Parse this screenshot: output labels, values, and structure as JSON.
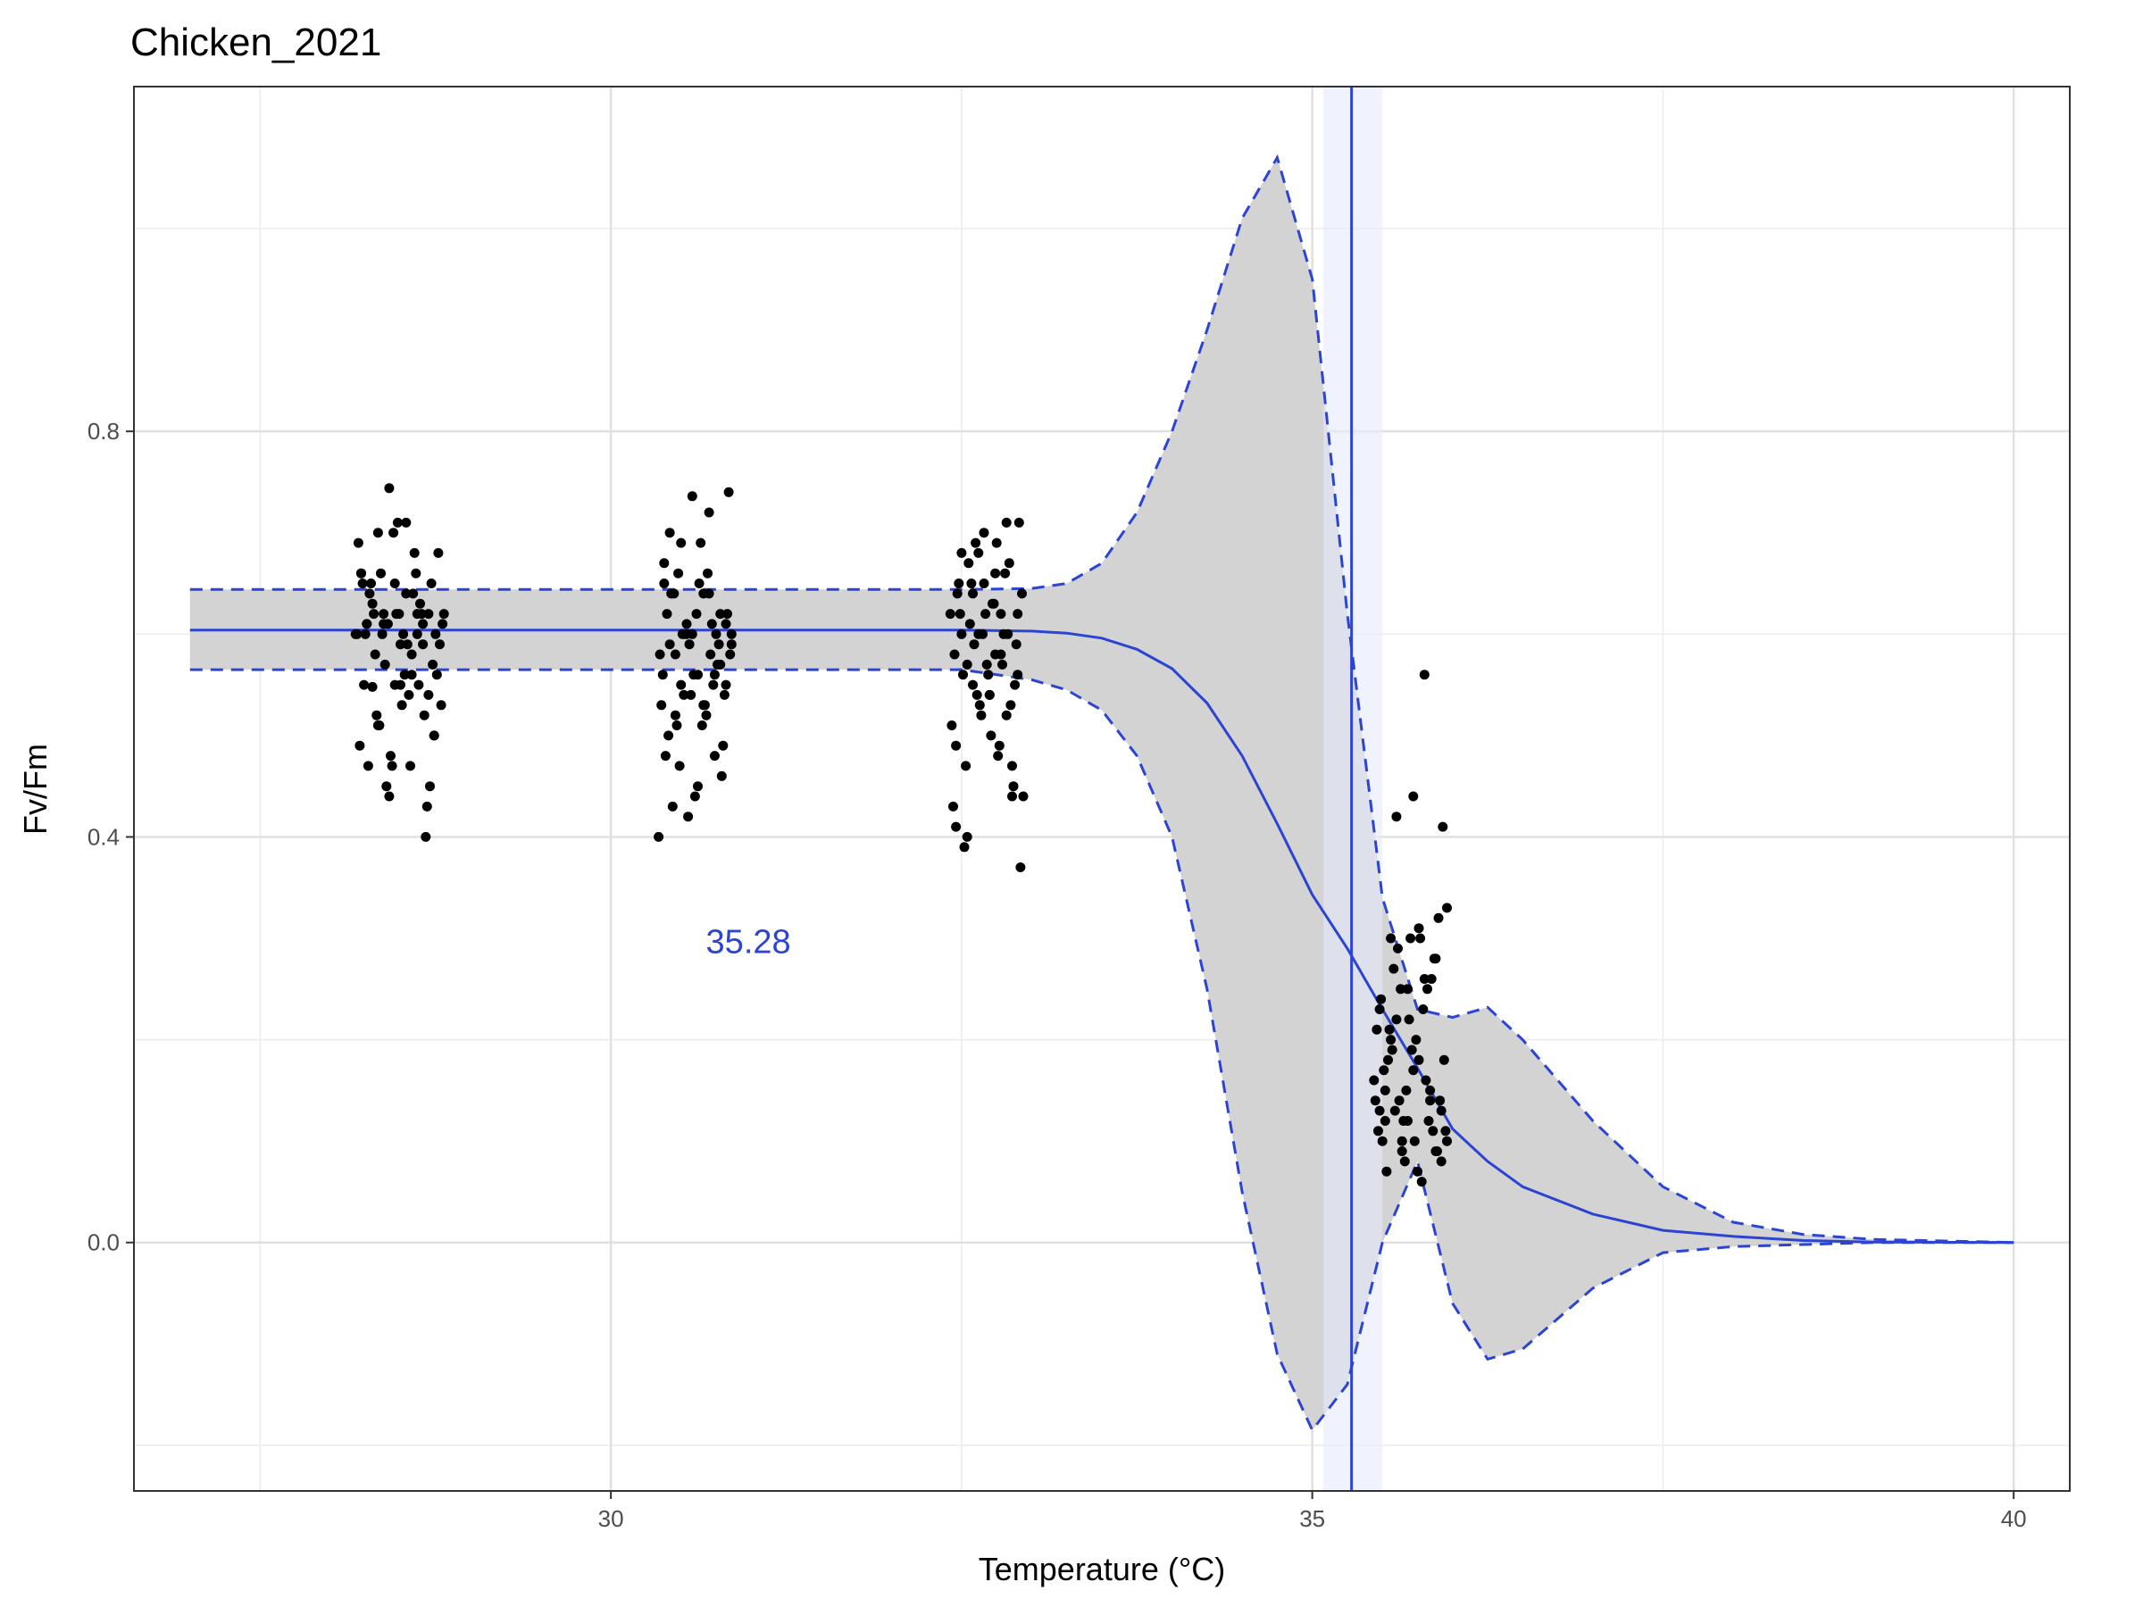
{
  "chart_data": {
    "type": "scatter",
    "title": "Chicken_2021",
    "xlabel": "Temperature (°C)",
    "ylabel": "Fv/Fm",
    "xlim": [
      26.6,
      40.4
    ],
    "ylim": [
      -0.245,
      1.14
    ],
    "x_ticks": [
      30,
      35,
      40
    ],
    "x_tick_labels": [
      "30",
      "35",
      "40"
    ],
    "x_minor_ticks": [
      27.5,
      32.5,
      37.5
    ],
    "y_ticks": [
      0.0,
      0.4,
      0.8
    ],
    "y_tick_labels": [
      "0.0",
      "0.4",
      "0.8"
    ],
    "y_minor_ticks": [
      -0.2,
      0.2,
      0.6,
      1.0
    ],
    "grid": true,
    "legend": "none",
    "colors": {
      "fit": "#2c44d2",
      "ribbon": "#d3d3d3",
      "points": "#000000",
      "ed50_band": "#e6eafc"
    },
    "ed50": {
      "value": 35.28,
      "ci": [
        35.08,
        35.5
      ],
      "label": "35.28",
      "label_position": [
        30.98,
        0.297
      ]
    },
    "fit_curve": {
      "x": [
        27,
        28,
        29,
        30,
        31,
        32,
        32.5,
        33,
        33.25,
        33.5,
        33.75,
        34,
        34.25,
        34.5,
        34.75,
        35,
        35.25,
        35.5,
        35.75,
        36,
        36.25,
        36.5,
        37,
        37.5,
        38,
        38.5,
        39,
        40
      ],
      "y": [
        0.604,
        0.604,
        0.604,
        0.604,
        0.604,
        0.604,
        0.604,
        0.603,
        0.601,
        0.596,
        0.585,
        0.566,
        0.532,
        0.48,
        0.413,
        0.343,
        0.29,
        0.23,
        0.172,
        0.112,
        0.08,
        0.055,
        0.028,
        0.012,
        0.006,
        0.002,
        0.0005,
        0.0
      ]
    },
    "ci_upper": {
      "x": [
        27,
        28,
        29,
        30,
        31,
        32,
        32.5,
        33,
        33.25,
        33.5,
        33.75,
        34,
        34.25,
        34.5,
        34.75,
        35,
        35.25,
        35.5,
        35.75,
        36,
        36.25,
        36.5,
        37,
        37.5,
        38,
        38.5,
        39,
        40
      ],
      "y": [
        0.644,
        0.644,
        0.644,
        0.644,
        0.644,
        0.644,
        0.644,
        0.645,
        0.65,
        0.67,
        0.72,
        0.8,
        0.9,
        1.01,
        1.07,
        0.95,
        0.62,
        0.34,
        0.23,
        0.222,
        0.232,
        0.2,
        0.12,
        0.055,
        0.02,
        0.008,
        0.003,
        0.0
      ]
    },
    "ci_lower": {
      "x": [
        27,
        28,
        29,
        30,
        31,
        32,
        32.5,
        33,
        33.25,
        33.5,
        33.75,
        34,
        34.25,
        34.5,
        34.75,
        35,
        35.25,
        35.5,
        35.75,
        36,
        36.25,
        36.5,
        37,
        37.5,
        38,
        38.5,
        39,
        40
      ],
      "y": [
        0.565,
        0.565,
        0.565,
        0.565,
        0.565,
        0.565,
        0.565,
        0.555,
        0.545,
        0.525,
        0.48,
        0.4,
        0.25,
        0.05,
        -0.11,
        -0.185,
        -0.14,
        0.0,
        0.08,
        -0.06,
        -0.115,
        -0.105,
        -0.045,
        -0.01,
        -0.004,
        -0.002,
        0.0,
        0.0
      ]
    },
    "points": {
      "groups": [
        {
          "x": [
            28.18,
            28.22,
            28.26,
            28.3,
            28.34,
            28.38,
            28.42,
            28.46,
            28.5,
            28.54,
            28.58,
            28.62,
            28.66,
            28.7,
            28.74,
            28.78,
            28.2,
            28.24,
            28.28,
            28.32,
            28.36,
            28.4,
            28.44,
            28.48,
            28.52,
            28.56,
            28.6,
            28.64,
            28.68,
            28.72,
            28.76,
            28.8,
            28.21,
            28.25,
            28.29,
            28.33,
            28.37,
            28.41,
            28.45,
            28.49,
            28.53,
            28.57,
            28.61,
            28.65,
            28.69,
            28.73,
            28.77,
            28.81,
            28.19,
            28.23,
            28.27,
            28.31,
            28.35,
            28.39,
            28.43,
            28.47,
            28.51,
            28.55,
            28.59,
            28.63,
            28.67,
            28.71,
            28.75,
            28.79,
            28.22,
            28.3,
            28.38,
            28.46,
            28.54,
            28.62,
            28.7,
            28.26,
            28.34,
            28.42,
            28.5,
            28.58,
            28.66,
            28.74
          ],
          "y": [
            0.6,
            0.66,
            0.61,
            0.548,
            0.7,
            0.62,
            0.744,
            0.65,
            0.59,
            0.71,
            0.56,
            0.62,
            0.59,
            0.54,
            0.5,
            0.59,
            0.69,
            0.55,
            0.64,
            0.58,
            0.66,
            0.45,
            0.47,
            0.71,
            0.6,
            0.54,
            0.68,
            0.63,
            0.4,
            0.65,
            0.56,
            0.61,
            0.49,
            0.6,
            0.65,
            0.52,
            0.6,
            0.61,
            0.7,
            0.62,
            0.56,
            0.47,
            0.66,
            0.62,
            0.43,
            0.57,
            0.68,
            0.62,
            0.6,
            0.65,
            0.47,
            0.62,
            0.51,
            0.57,
            0.48,
            0.62,
            0.53,
            0.59,
            0.64,
            0.55,
            0.52,
            0.45,
            0.6,
            0.53,
            0.66,
            0.63,
            0.61,
            0.55,
            0.64,
            0.6,
            0.62,
            0.61,
            0.51,
            0.44,
            0.55,
            0.58,
            0.61,
            0.5
          ]
        },
        {
          "x": [
            30.34,
            30.38,
            30.42,
            30.46,
            30.5,
            30.54,
            30.58,
            30.62,
            30.66,
            30.7,
            30.74,
            30.78,
            30.82,
            30.86,
            30.36,
            30.4,
            30.44,
            30.48,
            30.52,
            30.56,
            30.6,
            30.64,
            30.68,
            30.72,
            30.76,
            30.8,
            30.84,
            30.35,
            30.39,
            30.43,
            30.47,
            30.51,
            30.55,
            30.59,
            30.63,
            30.67,
            30.71,
            30.75,
            30.79,
            30.83,
            30.37,
            30.41,
            30.45,
            30.49,
            30.53,
            30.57,
            30.61,
            30.65,
            30.69,
            30.73,
            30.77,
            30.81,
            30.85,
            30.38,
            30.46,
            30.54,
            30.62,
            30.7,
            30.78,
            30.42,
            30.5,
            30.58,
            30.66,
            30.74,
            30.82,
            30.86
          ],
          "y": [
            0.4,
            0.65,
            0.7,
            0.58,
            0.69,
            0.6,
            0.736,
            0.56,
            0.64,
            0.72,
            0.48,
            0.62,
            0.55,
            0.6,
            0.53,
            0.62,
            0.43,
            0.66,
            0.54,
            0.59,
            0.44,
            0.69,
            0.52,
            0.61,
            0.57,
            0.49,
            0.74,
            0.58,
            0.48,
            0.64,
            0.51,
            0.6,
            0.42,
            0.56,
            0.65,
            0.53,
            0.58,
            0.6,
            0.46,
            0.62,
            0.56,
            0.5,
            0.64,
            0.47,
            0.6,
            0.54,
            0.62,
            0.51,
            0.66,
            0.55,
            0.59,
            0.54,
            0.58,
            0.67,
            0.52,
            0.61,
            0.45,
            0.64,
            0.57,
            0.59,
            0.55,
            0.6,
            0.53,
            0.56,
            0.61,
            0.59
          ]
        },
        {
          "x": [
            32.42,
            32.46,
            32.5,
            32.54,
            32.58,
            32.62,
            32.66,
            32.7,
            32.74,
            32.78,
            32.82,
            32.86,
            32.9,
            32.94,
            32.44,
            32.48,
            32.52,
            32.56,
            32.6,
            32.64,
            32.68,
            32.72,
            32.76,
            32.8,
            32.84,
            32.88,
            32.92,
            32.43,
            32.47,
            32.51,
            32.55,
            32.59,
            32.63,
            32.67,
            32.71,
            32.75,
            32.79,
            32.83,
            32.87,
            32.91,
            32.45,
            32.49,
            32.53,
            32.57,
            32.61,
            32.65,
            32.69,
            32.73,
            32.77,
            32.81,
            32.85,
            32.89,
            32.93,
            32.46,
            32.54,
            32.62,
            32.7,
            32.78,
            32.86,
            32.5,
            32.58,
            32.66,
            32.74,
            32.82,
            32.9
          ],
          "y": [
            0.62,
            0.49,
            0.68,
            0.4,
            0.64,
            0.6,
            0.7,
            0.54,
            0.66,
            0.58,
            0.71,
            0.47,
            0.62,
            0.44,
            0.43,
            0.65,
            0.39,
            0.61,
            0.69,
            0.52,
            0.57,
            0.63,
            0.48,
            0.6,
            0.67,
            0.55,
            0.37,
            0.51,
            0.64,
            0.56,
            0.67,
            0.59,
            0.53,
            0.62,
            0.5,
            0.69,
            0.57,
            0.6,
            0.45,
            0.71,
            0.58,
            0.62,
            0.47,
            0.65,
            0.54,
            0.6,
            0.56,
            0.63,
            0.49,
            0.66,
            0.53,
            0.59,
            0.64,
            0.41,
            0.57,
            0.68,
            0.54,
            0.62,
            0.44,
            0.6,
            0.55,
            0.65,
            0.58,
            0.52,
            0.56
          ]
        },
        {
          "x": [
            35.44,
            35.48,
            35.52,
            35.56,
            35.6,
            35.64,
            35.68,
            35.72,
            35.76,
            35.8,
            35.84,
            35.88,
            35.92,
            35.96,
            35.46,
            35.5,
            35.54,
            35.58,
            35.62,
            35.66,
            35.7,
            35.74,
            35.78,
            35.82,
            35.86,
            35.9,
            35.94,
            35.45,
            35.49,
            35.53,
            35.57,
            35.61,
            35.65,
            35.69,
            35.73,
            35.77,
            35.81,
            35.85,
            35.89,
            35.93,
            35.47,
            35.51,
            35.55,
            35.59,
            35.63,
            35.67,
            35.71,
            35.75,
            35.79,
            35.83,
            35.87,
            35.91,
            35.95,
            35.48,
            35.56,
            35.64,
            35.72,
            35.8,
            35.88,
            35.52,
            35.6,
            35.68,
            35.76,
            35.84,
            35.92,
            35.96
          ],
          "y": [
            0.16,
            0.23,
            0.12,
            0.3,
            0.42,
            0.09,
            0.25,
            0.44,
            0.31,
            0.56,
            0.15,
            0.28,
            0.13,
            0.33,
            0.21,
            0.1,
            0.18,
            0.27,
            0.14,
            0.08,
            0.3,
            0.2,
            0.06,
            0.25,
            0.11,
            0.32,
            0.18,
            0.14,
            0.24,
            0.07,
            0.19,
            0.29,
            0.12,
            0.22,
            0.1,
            0.3,
            0.16,
            0.26,
            0.09,
            0.41,
            0.11,
            0.17,
            0.21,
            0.13,
            0.25,
            0.15,
            0.19,
            0.07,
            0.23,
            0.12,
            0.28,
            0.14,
            0.11,
            0.13,
            0.2,
            0.1,
            0.17,
            0.26,
            0.09,
            0.15,
            0.22,
            0.12,
            0.18,
            0.14,
            0.08,
            0.1
          ]
        }
      ]
    }
  }
}
